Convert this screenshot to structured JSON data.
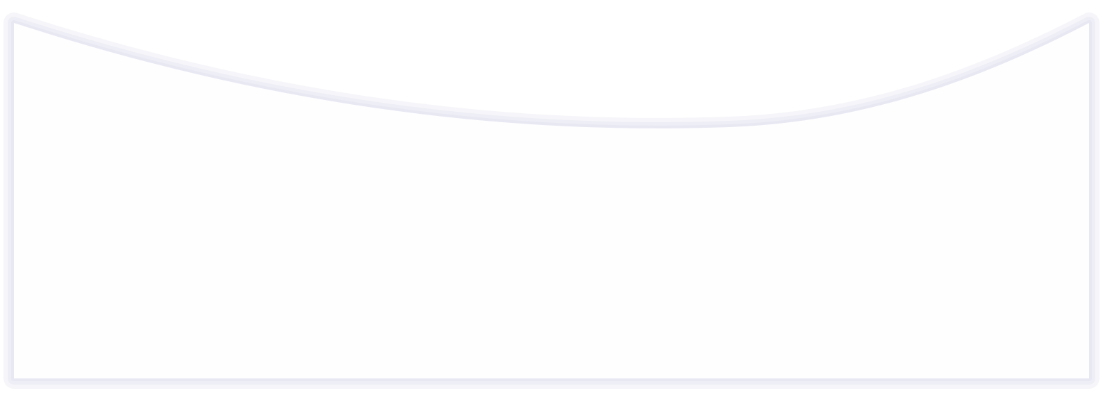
{
  "panel": {
    "fill_color": "#fefeff",
    "shadow_color": "#e6e6f2"
  }
}
